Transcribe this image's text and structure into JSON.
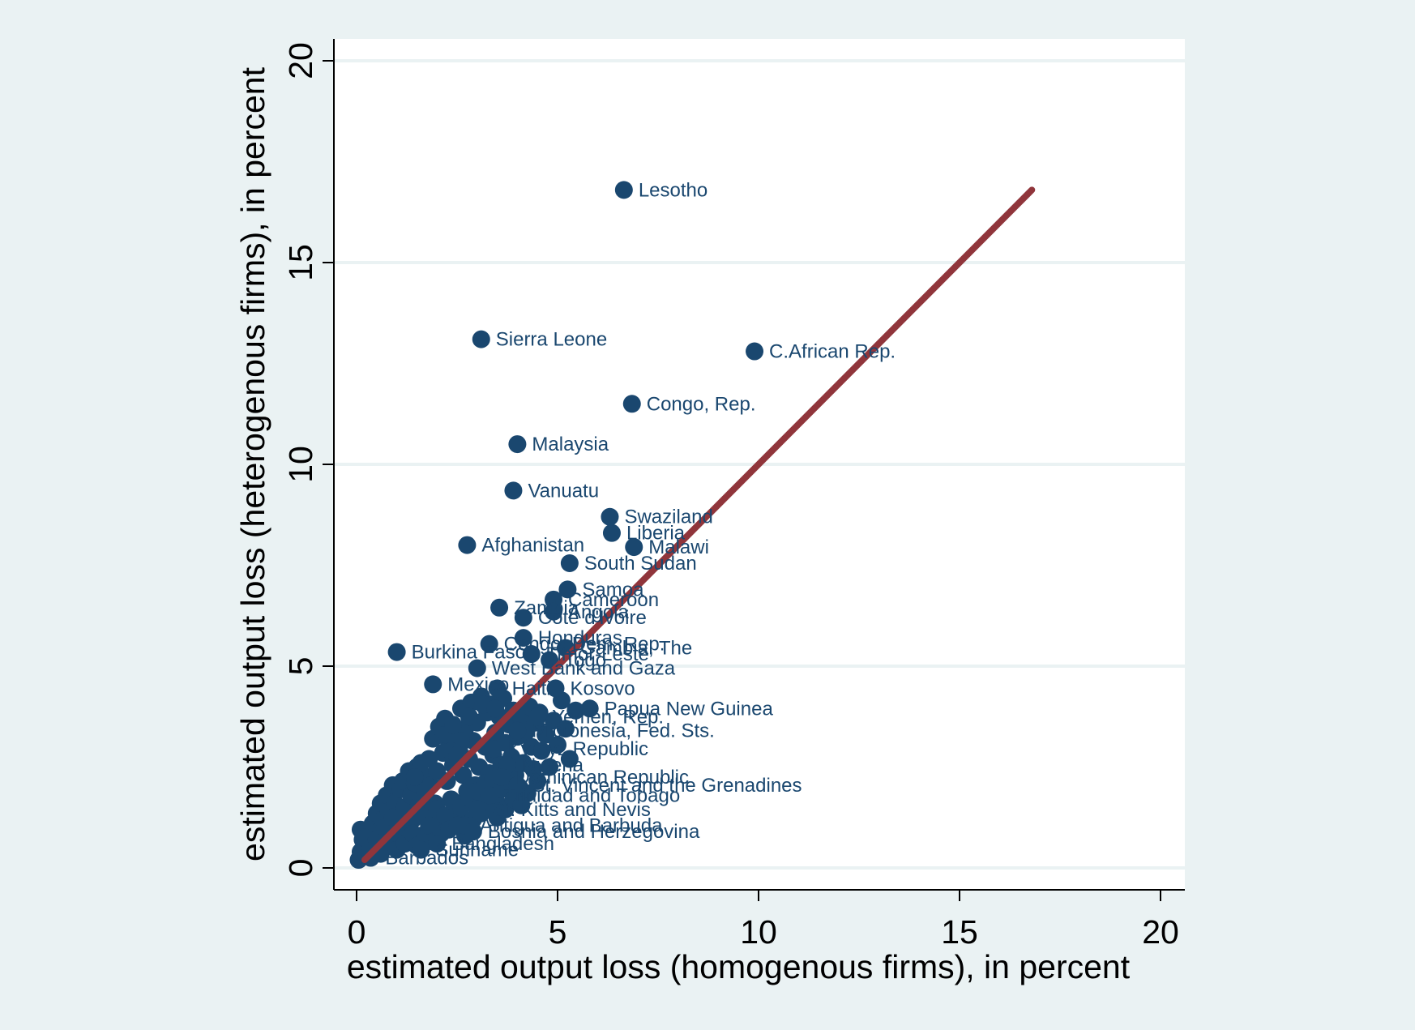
{
  "chart_data": {
    "type": "scatter",
    "title": "",
    "xlabel": "estimated output loss (homogenous firms), in percent",
    "ylabel": "estimated output loss (heterogenous firms), in percent",
    "xlim": [
      0,
      20
    ],
    "ylim": [
      0,
      20
    ],
    "xticks": [
      0,
      5,
      10,
      15,
      20
    ],
    "yticks": [
      0,
      5,
      10,
      15,
      20
    ],
    "grid": "horizontal",
    "legend": "none",
    "colors": {
      "background": "#eaf2f3",
      "plot_area": "#ffffff",
      "marker": "#1a476f",
      "label": "#1a476f",
      "fit_line": "#90353b",
      "grid": "#eaf2f3",
      "axis": "#000000"
    },
    "fit_line": {
      "x": [
        0.2,
        16.8
      ],
      "y": [
        0.2,
        16.8
      ]
    },
    "labeled_points": [
      {
        "label": "Lesotho",
        "x": 6.65,
        "y": 16.8
      },
      {
        "label": "Sierra Leone",
        "x": 3.1,
        "y": 13.1
      },
      {
        "label": "C.African Rep.",
        "x": 9.9,
        "y": 12.8
      },
      {
        "label": "Congo, Rep.",
        "x": 6.85,
        "y": 11.5
      },
      {
        "label": "Malaysia",
        "x": 4.0,
        "y": 10.5
      },
      {
        "label": "Vanuatu",
        "x": 3.9,
        "y": 9.35
      },
      {
        "label": "Swaziland",
        "x": 6.3,
        "y": 8.7
      },
      {
        "label": "Liberia",
        "x": 6.35,
        "y": 8.3
      },
      {
        "label": "Afghanistan",
        "x": 2.75,
        "y": 8.0
      },
      {
        "label": "Malawi",
        "x": 6.9,
        "y": 7.95
      },
      {
        "label": "South Sudan",
        "x": 5.3,
        "y": 7.55
      },
      {
        "label": "Samoa",
        "x": 5.25,
        "y": 6.9
      },
      {
        "label": "Cameroon",
        "x": 4.9,
        "y": 6.65
      },
      {
        "label": "Zambia",
        "x": 3.55,
        "y": 6.45
      },
      {
        "label": "Angola",
        "x": 4.9,
        "y": 6.35
      },
      {
        "label": "Cote d'Ivoire",
        "x": 4.15,
        "y": 6.2
      },
      {
        "label": "Honduras",
        "x": 4.15,
        "y": 5.7
      },
      {
        "label": "Burkina Faso",
        "x": 1.0,
        "y": 5.35
      },
      {
        "label": "Congo, Dem. Rep.",
        "x": 3.3,
        "y": 5.55
      },
      {
        "label": "Gambia, The",
        "x": 5.2,
        "y": 5.45
      },
      {
        "label": "Timor-Leste",
        "x": 4.35,
        "y": 5.3
      },
      {
        "label": "Togo",
        "x": 4.8,
        "y": 5.15
      },
      {
        "label": "West Bank and Gaza",
        "x": 3.0,
        "y": 4.95
      },
      {
        "label": "Mexico",
        "x": 1.9,
        "y": 4.55
      },
      {
        "label": "Haiti",
        "x": 3.5,
        "y": 4.45
      },
      {
        "label": "Kosovo",
        "x": 4.95,
        "y": 4.45
      },
      {
        "label": "Papua New Guinea",
        "x": 5.8,
        "y": 3.95
      },
      {
        "label": "Yemen, Rep.",
        "x": 4.5,
        "y": 3.75
      },
      {
        "label": "Micronesia, Fed. Sts.",
        "x": 4.0,
        "y": 3.4
      },
      {
        "label": "Kyrgyz Republic",
        "x": 3.4,
        "y": 2.95
      },
      {
        "label": "Nigeria",
        "x": 3.75,
        "y": 2.55
      },
      {
        "label": "Dominican Republic",
        "x": 3.6,
        "y": 2.25
      },
      {
        "label": "St. Vincent and the Grenadines",
        "x": 4.0,
        "y": 2.05
      },
      {
        "label": "Trinidad and Tobago",
        "x": 3.3,
        "y": 1.8
      },
      {
        "label": "St. Kitts and Nevis",
        "x": 3.0,
        "y": 1.45
      },
      {
        "label": "Antigua and Barbuda",
        "x": 2.7,
        "y": 1.05
      },
      {
        "label": "Bosnia and Herzegovina",
        "x": 2.9,
        "y": 0.9
      },
      {
        "label": "Bangladesh",
        "x": 2.0,
        "y": 0.6
      },
      {
        "label": "Suriname",
        "x": 1.6,
        "y": 0.45
      },
      {
        "label": "Barbados",
        "x": 0.35,
        "y": 0.25
      }
    ],
    "points": [
      [
        0.05,
        0.2
      ],
      [
        0.1,
        0.4
      ],
      [
        0.15,
        0.7
      ],
      [
        0.1,
        0.95
      ],
      [
        0.2,
        0.55
      ],
      [
        0.3,
        0.3
      ],
      [
        0.35,
        0.8
      ],
      [
        0.4,
        1.1
      ],
      [
        0.45,
        0.6
      ],
      [
        0.5,
        1.35
      ],
      [
        0.55,
        0.9
      ],
      [
        0.6,
        1.6
      ],
      [
        0.65,
        1.2
      ],
      [
        0.7,
        0.5
      ],
      [
        0.75,
        1.8
      ],
      [
        0.8,
        1.4
      ],
      [
        0.85,
        1.0
      ],
      [
        0.9,
        2.05
      ],
      [
        0.95,
        1.6
      ],
      [
        1.0,
        0.7
      ],
      [
        1.05,
        1.25
      ],
      [
        1.1,
        1.95
      ],
      [
        1.15,
        2.15
      ],
      [
        1.2,
        1.5
      ],
      [
        1.25,
        0.95
      ],
      [
        1.3,
        2.4
      ],
      [
        1.35,
        1.8
      ],
      [
        1.4,
        1.2
      ],
      [
        1.45,
        2.1
      ],
      [
        1.5,
        2.5
      ],
      [
        1.55,
        1.55
      ],
      [
        1.6,
        0.8
      ],
      [
        1.65,
        2.3
      ],
      [
        1.7,
        1.9
      ],
      [
        1.75,
        1.35
      ],
      [
        1.8,
        2.7
      ],
      [
        1.85,
        2.05
      ],
      [
        1.9,
        3.2
      ],
      [
        1.95,
        1.6
      ],
      [
        2.0,
        2.4
      ],
      [
        2.05,
        3.5
      ],
      [
        2.1,
        1.1
      ],
      [
        2.15,
        2.85
      ],
      [
        2.2,
        3.7
      ],
      [
        2.25,
        2.15
      ],
      [
        2.3,
        3.05
      ],
      [
        2.35,
        1.7
      ],
      [
        2.4,
        2.55
      ],
      [
        2.45,
        3.3
      ],
      [
        2.5,
        1.3
      ],
      [
        2.55,
        2.95
      ],
      [
        2.6,
        3.95
      ],
      [
        2.65,
        2.3
      ],
      [
        2.7,
        3.45
      ],
      [
        2.75,
        1.9
      ],
      [
        2.8,
        2.7
      ],
      [
        2.85,
        4.1
      ],
      [
        2.9,
        3.15
      ],
      [
        2.95,
        2.05
      ],
      [
        3.0,
        3.6
      ],
      [
        3.05,
        2.5
      ],
      [
        3.1,
        4.25
      ],
      [
        3.15,
        1.75
      ],
      [
        3.2,
        3.0
      ],
      [
        3.25,
        3.85
      ],
      [
        3.3,
        2.35
      ],
      [
        3.35,
        4.05
      ],
      [
        3.4,
        2.8
      ],
      [
        3.45,
        3.35
      ],
      [
        3.5,
        1.6
      ],
      [
        3.55,
        3.75
      ],
      [
        3.6,
        2.55
      ],
      [
        3.65,
        4.2
      ],
      [
        3.7,
        3.1
      ],
      [
        3.75,
        2.1
      ],
      [
        3.8,
        3.55
      ],
      [
        3.85,
        2.75
      ],
      [
        3.9,
        3.9
      ],
      [
        3.95,
        2.3
      ],
      [
        4.0,
        3.25
      ],
      [
        4.05,
        2.0
      ],
      [
        4.1,
        3.7
      ],
      [
        4.15,
        2.6
      ],
      [
        4.2,
        3.35
      ],
      [
        4.25,
        1.85
      ],
      [
        4.3,
        4.0
      ],
      [
        4.35,
        3.0
      ],
      [
        4.4,
        2.45
      ],
      [
        4.45,
        3.6
      ],
      [
        4.5,
        2.15
      ],
      [
        4.55,
        3.85
      ],
      [
        4.6,
        2.9
      ],
      [
        4.7,
        3.3
      ],
      [
        4.8,
        2.5
      ],
      [
        4.9,
        3.65
      ],
      [
        5.0,
        3.05
      ],
      [
        5.1,
        4.15
      ],
      [
        5.2,
        3.45
      ],
      [
        5.3,
        2.7
      ],
      [
        5.45,
        3.9
      ],
      [
        0.2,
        0.75
      ],
      [
        0.25,
        0.35
      ],
      [
        0.35,
        0.5
      ],
      [
        0.5,
        0.7
      ],
      [
        0.6,
        0.35
      ],
      [
        0.7,
        1.0
      ],
      [
        0.8,
        0.65
      ],
      [
        0.9,
        1.25
      ],
      [
        1.0,
        0.45
      ],
      [
        1.1,
        0.9
      ],
      [
        1.2,
        0.6
      ],
      [
        1.3,
        1.15
      ],
      [
        1.4,
        0.85
      ],
      [
        1.5,
        0.55
      ],
      [
        1.6,
        1.3
      ],
      [
        1.7,
        0.75
      ],
      [
        1.8,
        1.05
      ],
      [
        1.9,
        0.65
      ],
      [
        2.0,
        1.45
      ],
      [
        2.1,
        0.85
      ],
      [
        2.2,
        1.3
      ],
      [
        2.3,
        0.95
      ],
      [
        2.4,
        1.65
      ],
      [
        2.5,
        1.05
      ],
      [
        2.6,
        1.5
      ],
      [
        2.7,
        0.8
      ],
      [
        2.8,
        1.75
      ],
      [
        2.9,
        1.2
      ],
      [
        3.0,
        1.9
      ],
      [
        3.1,
        1.35
      ],
      [
        3.2,
        2.1
      ],
      [
        3.3,
        1.55
      ],
      [
        3.4,
        2.2
      ],
      [
        3.5,
        1.25
      ],
      [
        3.6,
        1.95
      ],
      [
        3.7,
        1.45
      ],
      [
        3.8,
        2.4
      ],
      [
        3.9,
        1.7
      ],
      [
        4.0,
        2.6
      ],
      [
        4.1,
        1.55
      ],
      [
        2.25,
        3.3
      ],
      [
        2.4,
        3.55
      ],
      [
        2.6,
        3.15
      ],
      [
        2.8,
        3.75
      ],
      [
        3.15,
        4.05
      ],
      [
        3.45,
        3.95
      ],
      [
        2.35,
        2.9
      ],
      [
        2.5,
        2.8
      ],
      [
        1.6,
        2.6
      ],
      [
        1.45,
        2.25
      ]
    ]
  }
}
